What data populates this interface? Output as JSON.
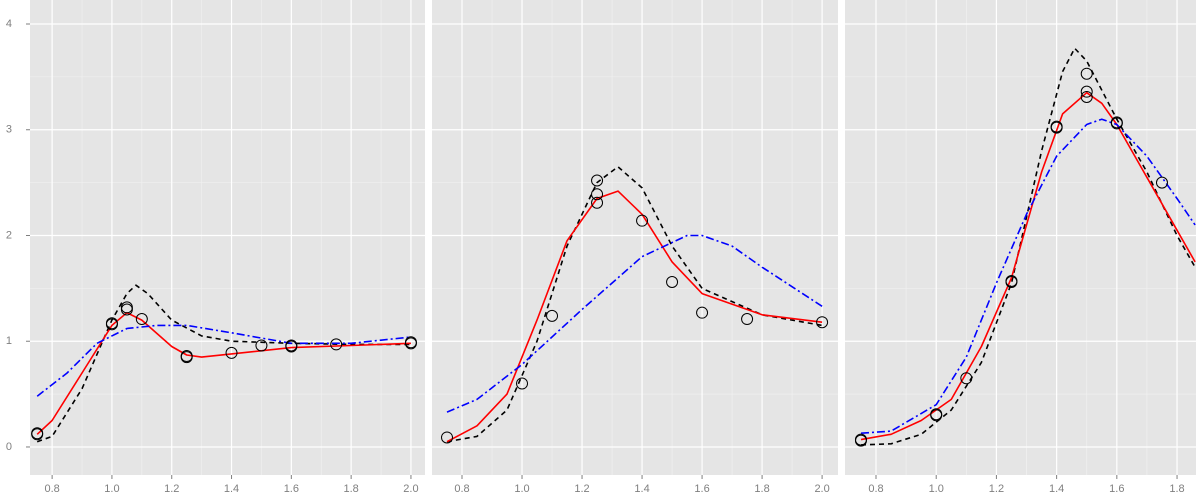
{
  "chart_data": [
    {
      "type": "scatter",
      "xlim": [
        0.726,
        2.047
      ],
      "ylim": [
        -0.265,
        4.227
      ],
      "xticks": [
        0.8,
        {
          "value": 1,
          "label": "1.0"
        },
        1.2,
        1.4,
        1.6,
        1.8,
        {
          "value": 2,
          "label": "2.0"
        }
      ],
      "yticks": [
        0,
        1,
        2,
        3,
        4
      ],
      "grid": true,
      "point_color": "#000000",
      "points": {
        "x": [
          0.75,
          0.75,
          1.0,
          1.0,
          1.05,
          1.05,
          1.1,
          1.25,
          1.25,
          1.4,
          1.5,
          1.6,
          1.6,
          1.75,
          2.0,
          2.0
        ],
        "y": [
          0.13,
          0.12,
          1.17,
          1.16,
          1.32,
          1.3,
          1.21,
          0.86,
          0.85,
          0.89,
          0.96,
          0.96,
          0.95,
          0.97,
          0.99,
          0.98
        ]
      },
      "series": [
        {
          "color": "#000000",
          "dash": "5,4",
          "x": [
            0.75,
            0.8,
            0.9,
            1.0,
            1.05,
            1.08,
            1.12,
            1.2,
            1.3,
            1.4,
            1.6,
            1.8,
            2.0
          ],
          "values": [
            0.05,
            0.1,
            0.55,
            1.2,
            1.45,
            1.53,
            1.45,
            1.2,
            1.05,
            1.0,
            0.98,
            0.97,
            0.97
          ]
        },
        {
          "color": "#ff0000",
          "dash": "none",
          "x": [
            0.75,
            0.8,
            0.9,
            1.0,
            1.05,
            1.1,
            1.2,
            1.25,
            1.3,
            1.4,
            1.6,
            1.8,
            2.0
          ],
          "values": [
            0.12,
            0.25,
            0.7,
            1.15,
            1.27,
            1.2,
            0.95,
            0.87,
            0.85,
            0.88,
            0.94,
            0.96,
            0.98
          ]
        },
        {
          "color": "#0000ff",
          "dash": "8,3,2,3",
          "x": [
            0.75,
            0.85,
            0.95,
            1.05,
            1.15,
            1.25,
            1.4,
            1.6,
            1.8,
            2.0
          ],
          "values": [
            0.48,
            0.7,
            0.98,
            1.12,
            1.15,
            1.15,
            1.08,
            0.98,
            0.98,
            1.04
          ]
        }
      ]
    },
    {
      "type": "scatter",
      "xlim": [
        0.7,
        2.053
      ],
      "ylim": [
        -0.265,
        4.227
      ],
      "xticks": [
        0.8,
        {
          "value": 1,
          "label": "1.0"
        },
        1.2,
        1.4,
        1.6,
        1.8,
        {
          "value": 2,
          "label": "2.0"
        }
      ],
      "grid": true,
      "point_color": "#000000",
      "points": {
        "x": [
          0.75,
          1.0,
          1.1,
          1.25,
          1.25,
          1.25,
          1.4,
          1.5,
          1.6,
          1.75,
          2.0
        ],
        "y": [
          0.09,
          0.6,
          1.24,
          2.52,
          2.39,
          2.31,
          2.14,
          1.56,
          1.27,
          1.21,
          1.18
        ]
      },
      "series": [
        {
          "color": "#000000",
          "dash": "5,4",
          "x": [
            0.75,
            0.85,
            0.95,
            1.05,
            1.15,
            1.25,
            1.32,
            1.4,
            1.5,
            1.6,
            1.8,
            2.0
          ],
          "values": [
            0.05,
            0.1,
            0.35,
            1.0,
            1.9,
            2.5,
            2.65,
            2.45,
            1.9,
            1.5,
            1.25,
            1.15
          ]
        },
        {
          "color": "#ff0000",
          "dash": "none",
          "x": [
            0.75,
            0.85,
            0.95,
            1.05,
            1.15,
            1.25,
            1.32,
            1.4,
            1.5,
            1.6,
            1.8,
            2.0
          ],
          "values": [
            0.05,
            0.2,
            0.5,
            1.2,
            1.95,
            2.35,
            2.42,
            2.2,
            1.75,
            1.45,
            1.25,
            1.18
          ]
        },
        {
          "color": "#0000ff",
          "dash": "8,3,2,3",
          "x": [
            0.75,
            0.85,
            1.0,
            1.2,
            1.4,
            1.55,
            1.6,
            1.7,
            1.8,
            2.0
          ],
          "values": [
            0.33,
            0.45,
            0.78,
            1.3,
            1.8,
            2.0,
            2.0,
            1.9,
            1.7,
            1.33
          ]
        }
      ]
    },
    {
      "type": "scatter",
      "xlim": [
        0.697,
        1.863
      ],
      "ylim": [
        -0.265,
        4.227
      ],
      "xticks": [
        0.8,
        {
          "value": 1,
          "label": "1.0"
        },
        1.2,
        1.4,
        1.6,
        1.8
      ],
      "grid": true,
      "point_color": "#000000",
      "points": {
        "x": [
          0.75,
          0.75,
          1.0,
          1.0,
          1.1,
          1.25,
          1.25,
          1.4,
          1.4,
          1.5,
          1.5,
          1.5,
          1.6,
          1.6,
          1.75
        ],
        "y": [
          0.06,
          0.07,
          0.31,
          0.3,
          0.65,
          1.57,
          1.56,
          3.03,
          3.02,
          3.53,
          3.36,
          3.31,
          3.07,
          3.06,
          2.5
        ]
      },
      "series": [
        {
          "color": "#000000",
          "dash": "5,4",
          "x": [
            0.75,
            0.85,
            0.95,
            1.05,
            1.15,
            1.25,
            1.35,
            1.42,
            1.46,
            1.5,
            1.6,
            1.7,
            1.8,
            1.86
          ],
          "values": [
            0.02,
            0.03,
            0.12,
            0.35,
            0.8,
            1.55,
            2.8,
            3.55,
            3.77,
            3.65,
            3.1,
            2.6,
            2.0,
            1.7
          ]
        },
        {
          "color": "#ff0000",
          "dash": "none",
          "x": [
            0.75,
            0.85,
            0.95,
            1.05,
            1.15,
            1.25,
            1.35,
            1.42,
            1.5,
            1.55,
            1.6,
            1.7,
            1.8,
            1.86
          ],
          "values": [
            0.07,
            0.12,
            0.25,
            0.45,
            0.95,
            1.6,
            2.6,
            3.15,
            3.35,
            3.25,
            3.05,
            2.55,
            2.05,
            1.75
          ]
        },
        {
          "color": "#0000ff",
          "dash": "8,3,2,3",
          "x": [
            0.75,
            0.85,
            1.0,
            1.1,
            1.2,
            1.3,
            1.4,
            1.5,
            1.55,
            1.6,
            1.7,
            1.8,
            1.86
          ],
          "values": [
            0.13,
            0.15,
            0.4,
            0.85,
            1.55,
            2.2,
            2.75,
            3.05,
            3.1,
            3.05,
            2.75,
            2.35,
            2.1
          ]
        }
      ]
    }
  ]
}
